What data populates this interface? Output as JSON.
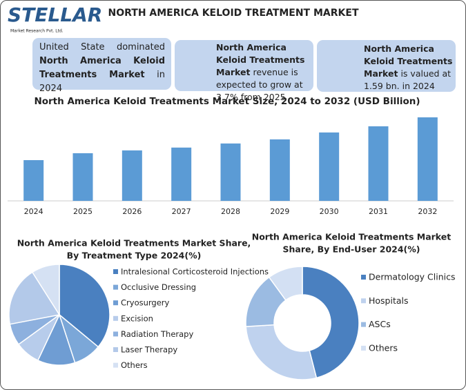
{
  "header": {
    "logo": "STELLAR",
    "logo_tagline": "Market Research Pvt. Ltd.",
    "title": "NORTH AMERICA KELOID TREATMENT MARKET"
  },
  "highlights": [
    {
      "parts": [
        {
          "text": "United State dominated ",
          "bold": false
        },
        {
          "text": "North America Keloid Treatments Market",
          "bold": true
        },
        {
          "text": " in 2024",
          "bold": false
        }
      ]
    },
    {
      "parts": [
        {
          "text": "North America Keloid Treatments Market",
          "bold": true
        },
        {
          "text": " revenue is expected to grow at 3.7% from 2025",
          "bold": false
        }
      ]
    },
    {
      "parts": [
        {
          "text": "North America Keloid Treatments Market",
          "bold": true
        },
        {
          "text": " is valued at 1.59 bn. in 2024",
          "bold": false
        }
      ]
    }
  ],
  "chart_data": [
    {
      "type": "bar",
      "title": "North America Keloid Treatments Market Size, 2024 to 2032 (USD Billion)",
      "categories": [
        "2024",
        "2025",
        "2026",
        "2027",
        "2028",
        "2029",
        "2030",
        "2031",
        "2032"
      ],
      "values": [
        1.59,
        1.86,
        1.97,
        2.08,
        2.24,
        2.4,
        2.67,
        2.91,
        3.26
      ],
      "color": "#5b9bd5"
    },
    {
      "type": "pie",
      "title": [
        "North America Keloid Treatments Market Share,",
        "By Treatment Type 2024(%)"
      ],
      "categories": [
        "Intralesional Corticosteroid Injections",
        "Occlusive Dressing",
        "Cryosurgery",
        "Excision",
        "Radiation Therapy",
        "Laser Therapy",
        "Others"
      ],
      "values": [
        36,
        9,
        12,
        8,
        7,
        19,
        9
      ],
      "colors": [
        "#4a80c0",
        "#7ba7d8",
        "#6f9dd3",
        "#b7cceb",
        "#8db0de",
        "#b3c9e9",
        "#d5e1f3"
      ]
    },
    {
      "type": "donut",
      "title": [
        "North America Keloid Treatments Market",
        "Share, By End-User 2024(%)"
      ],
      "categories": [
        "Dermatology Clinics",
        "Hospitals",
        "ASCs",
        "Others"
      ],
      "values": [
        46,
        28,
        16,
        10
      ],
      "colors": [
        "#4a80c0",
        "#bfd2ee",
        "#9bbbe2",
        "#d3e0f3"
      ]
    }
  ]
}
